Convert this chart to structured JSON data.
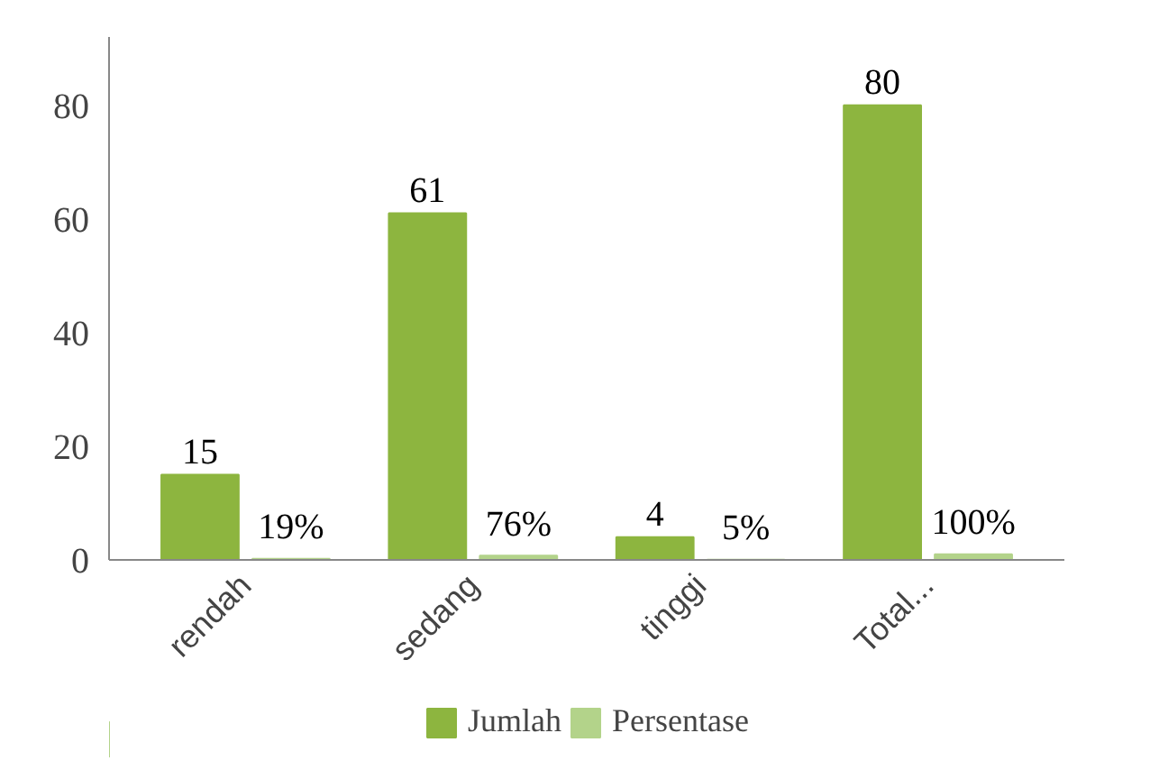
{
  "chart_data": {
    "type": "bar",
    "categories": [
      "rendah",
      "sedang",
      "tinggi",
      "Total..."
    ],
    "series": [
      {
        "name": "Jumlah",
        "color": "#8db53f",
        "values": [
          15,
          61,
          4,
          80
        ],
        "value_labels": [
          "15",
          "61",
          "4",
          "80"
        ]
      },
      {
        "name": "Persentase",
        "color": "#b3d38a",
        "values": [
          0.19,
          0.76,
          0.05,
          1.0
        ],
        "value_labels": [
          "19%",
          "76%",
          "5%",
          "100%"
        ]
      }
    ],
    "ylim": [
      0,
      92
    ],
    "yticks": [
      0,
      20,
      40,
      60,
      80
    ],
    "grid": false,
    "legend": "bottom"
  }
}
